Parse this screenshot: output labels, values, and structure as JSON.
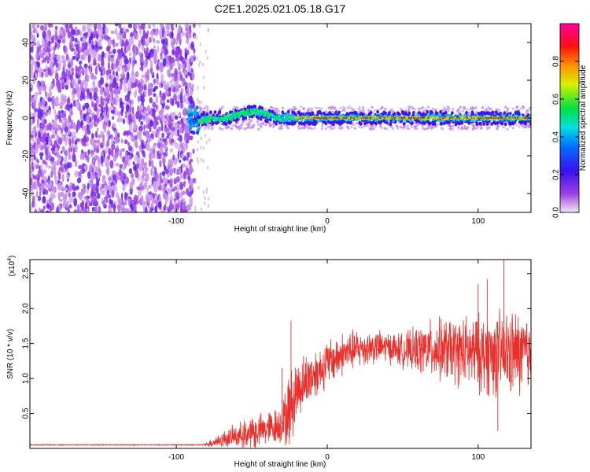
{
  "figure": {
    "title": "C2E1.2025.021.05.18.G17"
  },
  "chart_data": [
    {
      "type": "heatmap",
      "title": "C2E1.2025.021.05.18.G17",
      "xlabel": "Height of straight line (km)",
      "ylabel": "Frequency (Hz)",
      "xlim": [
        -197,
        135
      ],
      "ylim": [
        -50,
        50
      ],
      "x_ticks": [
        -100,
        0,
        100
      ],
      "y_ticks": [
        -40,
        -20,
        0,
        20,
        40
      ],
      "colorbar": {
        "label": "Normalized spectral amplitude",
        "range": [
          0,
          1
        ],
        "ticks": [
          "0.0",
          "0.2",
          "0.4",
          "0.6",
          "0.8"
        ],
        "colors": [
          "#f3e3f5",
          "#8a2be2",
          "#3010f0",
          "#00d8ff",
          "#00e060",
          "#f8f000",
          "#ff8000",
          "#ff0000",
          "#ff00a0"
        ]
      },
      "regions": [
        {
          "name": "noise",
          "x_range": [
            -197,
            -88
          ],
          "freq_range": [
            -50,
            50
          ],
          "level": 0.12
        },
        {
          "name": "onset",
          "x_range": [
            -92,
            -85
          ],
          "freq_range": [
            -8,
            6
          ],
          "level": 0.45
        },
        {
          "name": "signal_band",
          "x_range": [
            -88,
            135
          ],
          "freq_range": [
            -4,
            4
          ],
          "center_hz": 0,
          "peak_level": 0.95
        },
        {
          "name": "bump",
          "x_range": [
            -65,
            -35
          ],
          "center_hz": 3,
          "level": 0.6
        }
      ]
    },
    {
      "type": "line",
      "title": "",
      "xlabel": "Height of straight line (km)",
      "ylabel": "SNR (10 * v/v)",
      "y_multiplier": "(x10",
      "y_multiplier_exp": "4",
      "y_multiplier_close": ")",
      "xlim": [
        -197,
        135
      ],
      "ylim": [
        0,
        2.7
      ],
      "x_ticks": [
        -100,
        0,
        100
      ],
      "y_ticks": [
        "0.5",
        "1.0",
        "1.5",
        "2.0",
        "2.5"
      ],
      "line_color": "#e8302c",
      "series": [
        {
          "name": "SNR envelope",
          "x": [
            -197,
            -150,
            -100,
            -82,
            -78,
            -70,
            -60,
            -50,
            -40,
            -30,
            -25,
            -22,
            -20,
            -15,
            -10,
            -5,
            0,
            10,
            20,
            30,
            40,
            50,
            60,
            70,
            80,
            90,
            100,
            110,
            120,
            130,
            135
          ],
          "mean": [
            0.05,
            0.05,
            0.05,
            0.05,
            0.07,
            0.12,
            0.18,
            0.22,
            0.28,
            0.35,
            0.55,
            0.7,
            0.85,
            0.95,
            1.05,
            1.12,
            1.22,
            1.35,
            1.42,
            1.45,
            1.45,
            1.4,
            1.4,
            1.42,
            1.4,
            1.38,
            1.35,
            1.35,
            1.35,
            1.35,
            1.35
          ],
          "spread": [
            0.0,
            0.0,
            0.0,
            0.0,
            0.05,
            0.1,
            0.15,
            0.2,
            0.22,
            0.25,
            0.5,
            0.45,
            0.4,
            0.35,
            0.35,
            0.3,
            0.3,
            0.28,
            0.25,
            0.22,
            0.2,
            0.22,
            0.3,
            0.38,
            0.42,
            0.45,
            0.5,
            0.55,
            0.55,
            0.55,
            0.5
          ]
        }
      ],
      "spikes": [
        {
          "x": -24,
          "y": 1.83
        },
        {
          "x": -30,
          "y": 1.15
        },
        {
          "x": 100,
          "y": 2.35
        },
        {
          "x": 106,
          "y": 2.42
        },
        {
          "x": 117,
          "y": 2.75
        },
        {
          "x": 113,
          "y": 0.25
        }
      ]
    }
  ]
}
